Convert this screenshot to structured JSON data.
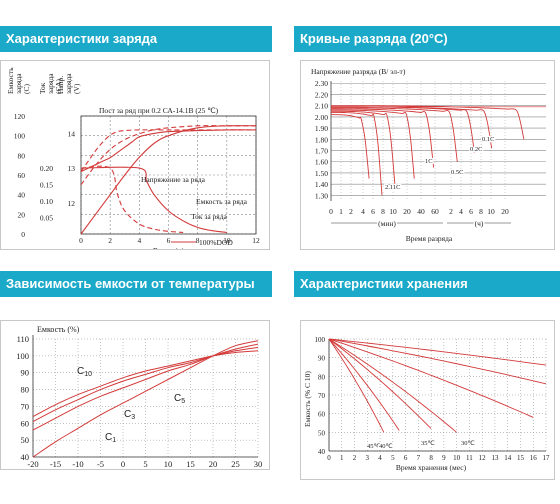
{
  "headers": {
    "charge": "Характеристики заряда",
    "discharge": "Кривые разряда (20°С)",
    "temperature": "Зависимость емкости от температуры",
    "storage": "Характеристики хранения"
  },
  "colors": {
    "accent": "#1aa9c9",
    "curve": "#d33a3a",
    "grid": "#888888"
  },
  "chart_data": [
    {
      "id": "charge",
      "type": "line",
      "title": "Пост за ряд при 0.2 СА-14.1В (25 ℃)",
      "xlabel": "Время (ч)",
      "x_ticks": [
        "0",
        "2",
        "4",
        "6",
        "8",
        "10",
        "12"
      ],
      "xlim": [
        0,
        12
      ],
      "axis_titles": {
        "capacity": "Емкость заряда (С)",
        "current": "Ток заряда (СА)",
        "voltage": "Напр. заряда (V)"
      },
      "capacity_ticks": [
        "0",
        "20",
        "40",
        "60",
        "80",
        "100",
        "120"
      ],
      "current_ticks": [
        "0.05",
        "0.10",
        "0.15",
        "0.20"
      ],
      "voltage_ticks": [
        "12",
        "13",
        "14"
      ],
      "voltage_range": [
        11.1,
        14.5
      ],
      "annotations": {
        "voltage": "Напряжение за ряда",
        "capacity": "Емкость за ряда",
        "current": "Ток за ряда"
      },
      "legend": [
        "100%DOD",
        "50%DOD"
      ],
      "series": [
        {
          "name": "Напряжение 100%DOD",
          "x": [
            0,
            0.5,
            1,
            1.5,
            2,
            2.5,
            3,
            3.5,
            4,
            5,
            6,
            8,
            10,
            12
          ],
          "y": [
            12.9,
            13.0,
            13.1,
            13.2,
            13.3,
            13.45,
            13.6,
            13.75,
            13.9,
            14.0,
            14.05,
            14.08,
            14.1,
            14.1
          ]
        },
        {
          "name": "Напряжение 50%DOD",
          "x": [
            0,
            0.5,
            1,
            1.5,
            2,
            2.5,
            3,
            4,
            6,
            8,
            10,
            12
          ],
          "y": [
            12.9,
            13.2,
            13.5,
            13.75,
            13.95,
            14.05,
            14.08,
            14.1,
            14.1,
            14.1,
            14.1,
            14.1
          ]
        },
        {
          "name": "Емкость 100%DOD",
          "x": [
            0,
            1,
            2,
            3,
            4,
            5,
            6,
            8,
            10,
            12
          ],
          "y": [
            0,
            20,
            40,
            60,
            78,
            92,
            100,
            108,
            110,
            110
          ]
        },
        {
          "name": "Емкость 50%DOD",
          "x": [
            0,
            1,
            2,
            3,
            4,
            5,
            6,
            8,
            10,
            12
          ],
          "y": [
            50,
            70,
            86,
            96,
            102,
            106,
            108,
            110,
            110,
            110
          ]
        },
        {
          "name": "Ток 100%DOD",
          "x": [
            0,
            4,
            4.5,
            5,
            6,
            7,
            8,
            9,
            10
          ],
          "y": [
            0.2,
            0.2,
            0.16,
            0.12,
            0.07,
            0.04,
            0.02,
            0.01,
            0.005
          ]
        },
        {
          "name": "Ток 50%DOD",
          "x": [
            0,
            2,
            2.5,
            3,
            4,
            5,
            6,
            7
          ],
          "y": [
            0.2,
            0.2,
            0.12,
            0.07,
            0.03,
            0.015,
            0.008,
            0.005
          ]
        }
      ]
    },
    {
      "id": "discharge",
      "type": "line",
      "ylabel": "Напряжение разряда (В/ эл-т)",
      "xlabel": "Время разряда",
      "y_ticks": [
        "1.30",
        "1.40",
        "1.50",
        "1.60",
        "1.70",
        "1.80",
        "1.90",
        "2.00",
        "2.10",
        "2.20",
        "2.30"
      ],
      "ylim": [
        1.25,
        2.32
      ],
      "x_ticks_min": [
        "0",
        "1",
        "2",
        "4",
        "6",
        "8",
        "10",
        "20",
        "40",
        "60"
      ],
      "x_ticks_hour": [
        "2",
        "4",
        "6",
        "8",
        "10",
        "20"
      ],
      "unit_min": "(мин)",
      "unit_hour": "(ч)",
      "curve_labels": [
        "2.11С",
        "1С",
        "0.5С",
        "0.2С",
        "0.1С"
      ],
      "series": [
        {
          "name": "3C",
          "start": 2.02,
          "knee_x": 0.14,
          "end_y": 1.45
        },
        {
          "name": "2.11C",
          "start": 2.04,
          "knee_x": 0.2,
          "end_y": 1.3
        },
        {
          "name": "1.7C",
          "start": 2.05,
          "knee_x": 0.26,
          "end_y": 1.4
        },
        {
          "name": "1C",
          "start": 2.06,
          "knee_x": 0.35,
          "end_y": 1.45
        },
        {
          "name": "0.7C",
          "start": 2.07,
          "knee_x": 0.44,
          "end_y": 1.55
        },
        {
          "name": "0.5C",
          "start": 2.08,
          "knee_x": 0.55,
          "end_y": 1.6
        },
        {
          "name": "0.3C",
          "start": 2.09,
          "knee_x": 0.63,
          "end_y": 1.68
        },
        {
          "name": "0.2C",
          "start": 2.09,
          "knee_x": 0.71,
          "end_y": 1.72
        },
        {
          "name": "0.1C",
          "start": 2.1,
          "knee_x": 0.86,
          "end_y": 1.8
        }
      ]
    },
    {
      "id": "temperature",
      "type": "line",
      "ylabel": "Емкость (%)",
      "xlabel": "Температура (℃)",
      "x_ticks": [
        "-20",
        "-15",
        "-10",
        "-5",
        "0",
        "5",
        "10",
        "15",
        "20",
        "25",
        "30"
      ],
      "xlim": [
        -20,
        30
      ],
      "y_ticks": [
        "40",
        "50",
        "60",
        "70",
        "80",
        "90",
        "100",
        "110"
      ],
      "ylim": [
        40,
        110
      ],
      "series": [
        {
          "name": "C10",
          "x": [
            -20,
            -15,
            -10,
            -5,
            0,
            5,
            10,
            15,
            20,
            25,
            30
          ],
          "y": [
            64,
            71,
            77,
            82,
            87,
            91,
            94,
            97,
            100,
            102,
            103
          ]
        },
        {
          "name": "C5",
          "x": [
            -20,
            -15,
            -10,
            -5,
            0,
            5,
            10,
            15,
            20,
            25,
            30
          ],
          "y": [
            61,
            68,
            74,
            80,
            85,
            89,
            93,
            96,
            100,
            103,
            105
          ]
        },
        {
          "name": "C3",
          "x": [
            -20,
            -15,
            -10,
            -5,
            0,
            5,
            10,
            15,
            20,
            25,
            30
          ],
          "y": [
            56,
            63,
            70,
            76,
            81,
            86,
            91,
            95,
            100,
            104,
            107
          ]
        },
        {
          "name": "C1",
          "x": [
            -20,
            -15,
            -10,
            -5,
            0,
            5,
            10,
            15,
            20,
            25,
            30
          ],
          "y": [
            40,
            49,
            57,
            65,
            72,
            79,
            86,
            93,
            100,
            106,
            109
          ]
        }
      ],
      "labels": [
        "C10",
        "C5",
        "C3",
        "C1"
      ]
    },
    {
      "id": "storage",
      "type": "line",
      "ylabel": "Емкость (% С 10)",
      "xlabel": "Время хранения (мес)",
      "x_ticks": [
        "0",
        "1",
        "2",
        "3",
        "4",
        "5",
        "6",
        "7",
        "8",
        "9",
        "10",
        "11",
        "12",
        "13",
        "14",
        "15",
        "16",
        "17"
      ],
      "xlim": [
        0,
        17
      ],
      "y_ticks": [
        "40",
        "50",
        "60",
        "70",
        "80",
        "90",
        "100"
      ],
      "ylim": [
        40,
        100
      ],
      "series": [
        {
          "name": "0℃",
          "end_x": 17,
          "end_y": 86
        },
        {
          "name": "10℃",
          "end_x": 17,
          "end_y": 76
        },
        {
          "name": "20℃",
          "end_x": 16,
          "end_y": 58
        },
        {
          "name": "30℃",
          "end_x": 10,
          "end_y": 50
        },
        {
          "name": "35℃",
          "end_x": 8,
          "end_y": 52
        },
        {
          "name": "40℃",
          "end_x": 5.5,
          "end_y": 51
        },
        {
          "name": "45℃",
          "end_x": 4.3,
          "end_y": 50
        }
      ],
      "labels": [
        "45℃",
        "40℃",
        "35℃",
        "30℃"
      ]
    }
  ]
}
